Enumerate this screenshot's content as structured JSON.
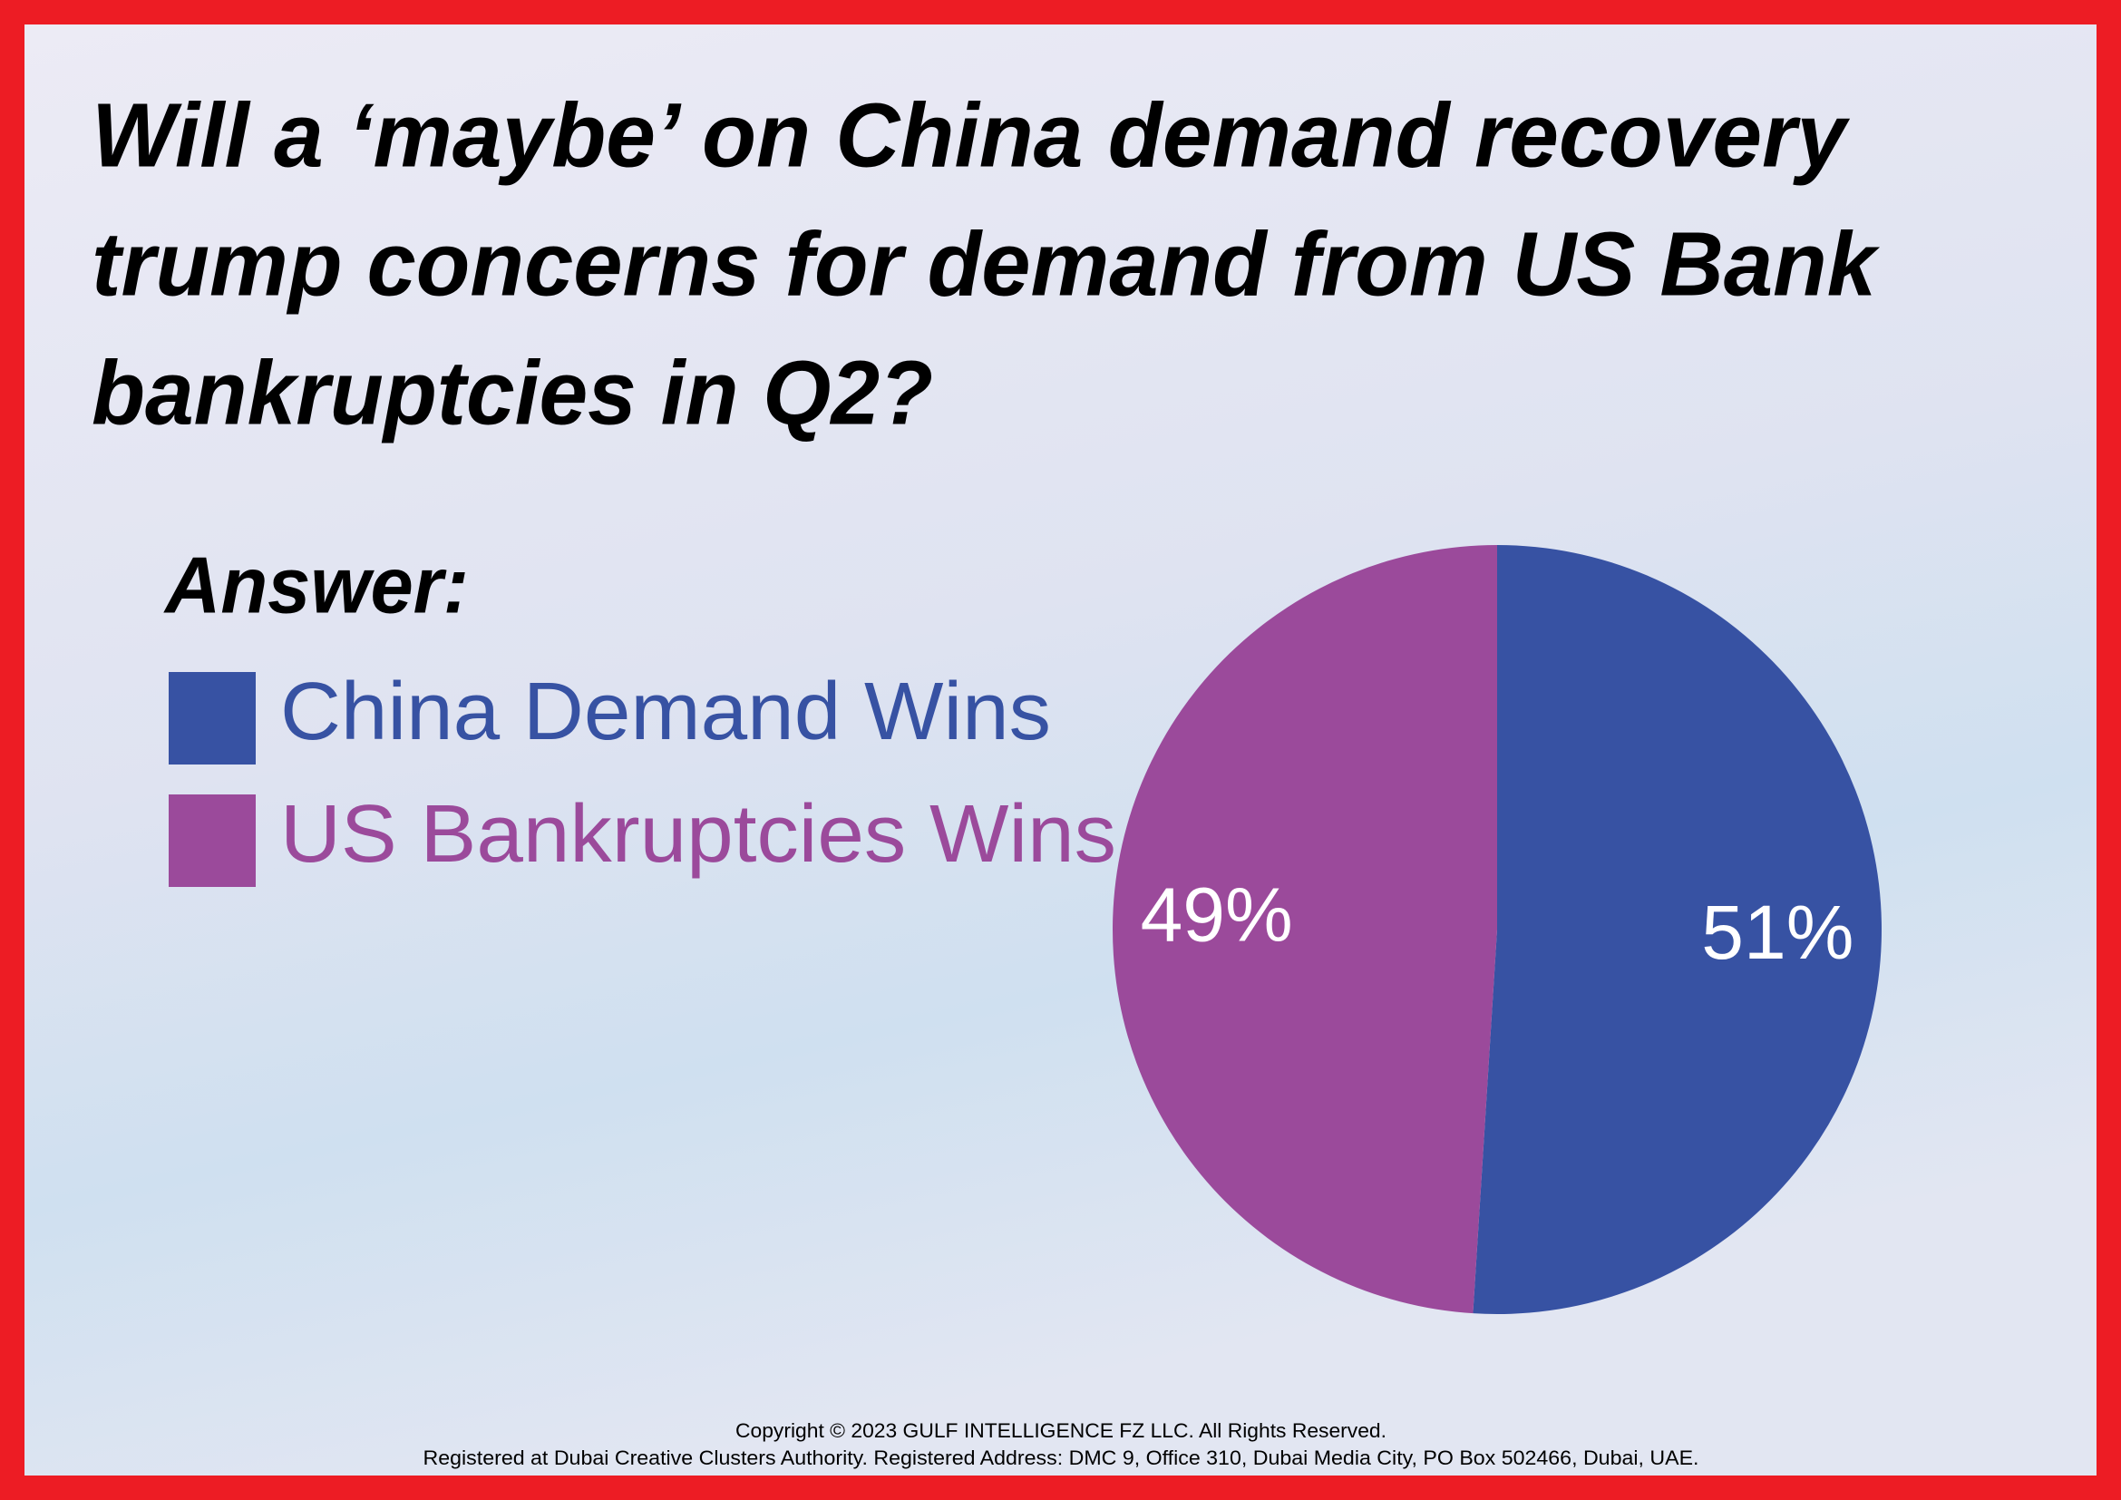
{
  "chart_data": {
    "type": "pie",
    "title": [
      "Will a ‘maybe’ on China demand recovery",
      "trump concerns for demand from US Bank",
      "bankruptcies in Q2?"
    ],
    "legend_title": "Answer:",
    "categories": [
      "China Demand Wins",
      "US Bankruptcies Wins"
    ],
    "values": [
      51,
      49
    ],
    "value_labels": [
      "51%",
      "49%"
    ],
    "colors": [
      "#3752a3",
      "#9b4a9b"
    ],
    "footnotes": [
      "Copyright © 2023 GULF INTELLIGENCE FZ LLC. All Rights Reserved.",
      "Registered at Dubai Creative Clusters Authority. Registered Address: DMC 9, Office 310, Dubai Media City, PO Box 502466, Dubai, UAE."
    ]
  }
}
